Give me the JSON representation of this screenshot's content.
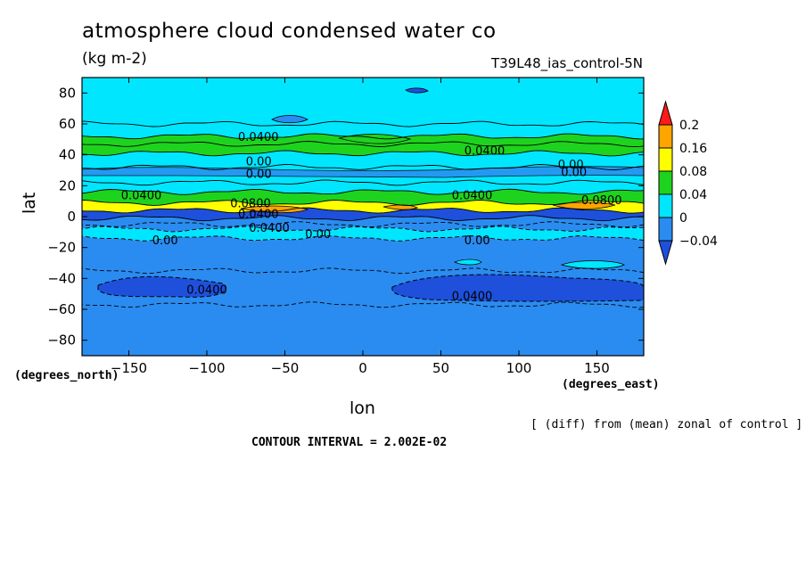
{
  "chart_data": {
    "type": "contour",
    "title": "atmosphere cloud condensed water co",
    "units": "(kg m-2)",
    "run_label": "T39L48_ias_control-5N",
    "xlabel": "lon",
    "ylabel": "lat",
    "x_units_label": "(degrees_east)",
    "y_units_label": "(degrees_north)",
    "xlim": [
      -180,
      180
    ],
    "ylim": [
      -90,
      90
    ],
    "x_ticks": [
      -150,
      -100,
      -50,
      0,
      50,
      100,
      150
    ],
    "y_ticks": [
      80,
      60,
      40,
      20,
      0,
      -20,
      -40,
      -60,
      -80
    ],
    "x_tick_labels": [
      "−150",
      "−100",
      "−50",
      "0",
      "50",
      "100",
      "150"
    ],
    "y_tick_labels": [
      "80",
      "60",
      "40",
      "20",
      "0",
      "−20",
      "−40",
      "−60",
      "−80"
    ],
    "color_levels": [
      {
        "value": -0.04,
        "label": "−0.04",
        "color": "#2a8cf0"
      },
      {
        "value": 0,
        "label": "0",
        "color": "#00e6ff"
      },
      {
        "value": 0.04,
        "label": "0.04",
        "color": "#1ed31e"
      },
      {
        "value": 0.08,
        "label": "0.08",
        "color": "#ffff00"
      },
      {
        "value": 0.16,
        "label": "0.16",
        "color": "#ffa500"
      },
      {
        "value": 0.2,
        "label": "0.2",
        "color": "#ff1a1a"
      }
    ],
    "colors": {
      "below_minus_004": "#1e50dc",
      "minus_004_to_0": "#2a8cf0",
      "zero_to_004": "#00e6ff",
      "004_to_008": "#1ed31e",
      "008_to_016": "#ffff00",
      "016_to_02": "#ffa500",
      "above_02": "#ff1a1a"
    },
    "bands": [
      {
        "lat_from": 90,
        "lat_to": 52,
        "class": "zero_to_004"
      },
      {
        "lat_from": 52,
        "lat_to": 41,
        "class": "004_to_008"
      },
      {
        "lat_from": 41,
        "lat_to": 16,
        "class": "zero_to_004"
      },
      {
        "lat_from": 16,
        "lat_to": 9,
        "class": "004_to_008"
      },
      {
        "lat_from": 9,
        "lat_to": 4,
        "class": "008_to_016"
      },
      {
        "lat_from": 4,
        "lat_to": -1,
        "class": "below_minus_004"
      },
      {
        "lat_from": -1,
        "lat_to": -8,
        "class": "minus_004_to_0"
      },
      {
        "lat_from": -8,
        "lat_to": -14,
        "class": "zero_to_004"
      },
      {
        "lat_from": -14,
        "lat_to": -90,
        "class": "minus_004_to_0"
      }
    ],
    "contour_labels": [
      {
        "lon": -80,
        "lat": 52,
        "text": "0.0400"
      },
      {
        "lon": 65,
        "lat": 43,
        "text": "0.0400"
      },
      {
        "lon": -75,
        "lat": 36,
        "text": "0.00"
      },
      {
        "lon": -75,
        "lat": 28,
        "text": "0.00"
      },
      {
        "lon": 125,
        "lat": 34,
        "text": "0.00"
      },
      {
        "lon": 127,
        "lat": 29,
        "text": "0.00"
      },
      {
        "lon": -155,
        "lat": 14,
        "text": "0.0400"
      },
      {
        "lon": 57,
        "lat": 14,
        "text": "0.0400"
      },
      {
        "lon": 140,
        "lat": 11,
        "text": "0.0800"
      },
      {
        "lon": -85,
        "lat": 9,
        "text": "0.0800"
      },
      {
        "lon": -80,
        "lat": 2,
        "text": "0.0400"
      },
      {
        "lon": -73,
        "lat": -7,
        "text": "0.0400"
      },
      {
        "lon": -37,
        "lat": -11,
        "text": "0.00"
      },
      {
        "lon": -135,
        "lat": -15,
        "text": "0.00"
      },
      {
        "lon": 65,
        "lat": -15,
        "text": "0.00"
      },
      {
        "lon": -113,
        "lat": -47,
        "text": "0.0400"
      },
      {
        "lon": 57,
        "lat": -51,
        "text": "0.0400"
      }
    ],
    "grid": false,
    "legend": "right"
  },
  "footer": {
    "note": "[ (diff) from (mean) zonal of control ]",
    "contour_interval": "CONTOUR INTERVAL = 2.002E-02"
  }
}
